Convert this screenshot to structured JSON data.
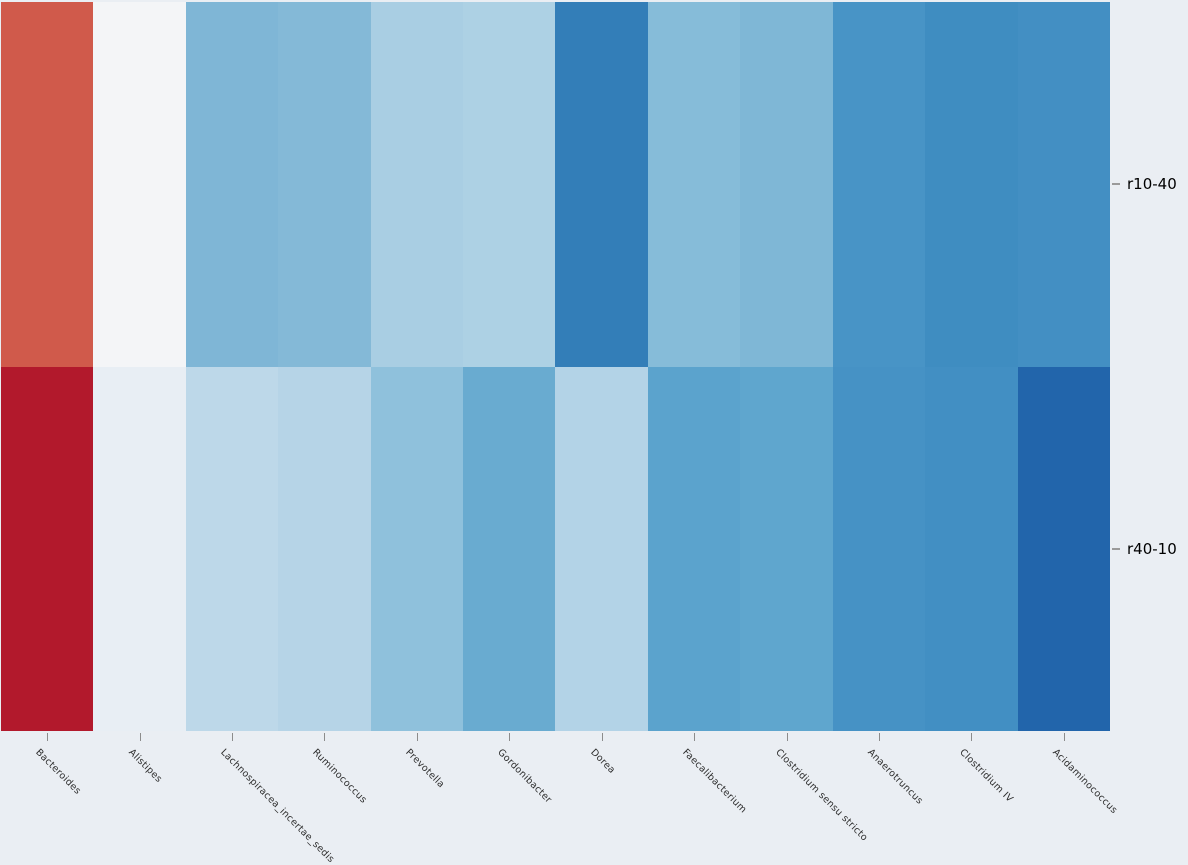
{
  "figure": {
    "background_color": "#eaeef3"
  },
  "chart_data": {
    "type": "heatmap",
    "title": "",
    "xlabel": "",
    "ylabel": "",
    "colormap": "RdBu",
    "legend": "none",
    "grid": false,
    "rows": [
      "r10-40",
      "r40-10"
    ],
    "columns": [
      "Bacteroides",
      "Alistipes",
      "Lachnospiracea_incertae_sedis",
      "Ruminococcus",
      "Prevotella",
      "Gordonibacter",
      "Dorea",
      "Faecalibacterium",
      "Clostridium sensu stricto",
      "Anaerotruncus",
      "Clostridium IV",
      "Acidaminococcus"
    ],
    "cell_colors": [
      [
        "#d05a4b",
        "#f4f5f7",
        "#7fb6d6",
        "#84b9d7",
        "#a9cee3",
        "#add1e4",
        "#337eb8",
        "#86bcd9",
        "#7fb7d6",
        "#4894c6",
        "#3f8dc1",
        "#438fc3"
      ],
      [
        "#b2192c",
        "#e8eef4",
        "#bdd8e9",
        "#b6d4e7",
        "#8fc1dc",
        "#69abd0",
        "#b3d3e7",
        "#5ba3cd",
        "#5fa6ce",
        "#4692c5",
        "#428fc3",
        "#2265ab"
      ]
    ],
    "approx_values_rdbu_scale_minus1_to_1": [
      [
        -0.7,
        -0.01,
        0.49,
        0.47,
        0.34,
        0.32,
        0.82,
        0.45,
        0.48,
        0.7,
        0.74,
        0.72
      ],
      [
        -0.95,
        0.07,
        0.26,
        0.29,
        0.42,
        0.56,
        0.29,
        0.62,
        0.6,
        0.71,
        0.73,
        0.93
      ]
    ],
    "style": {
      "x_tick_color": "#8c8c8c",
      "y_tick_color": "#9a9a9a",
      "x_label_color": "#2b2b2b",
      "y_label_color": "#000000",
      "x_label_rotation_deg": 45
    }
  }
}
